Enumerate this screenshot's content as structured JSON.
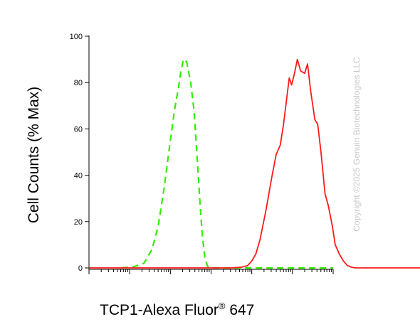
{
  "chart_data": {
    "type": "line",
    "xlabel": "TCP1-Alexa Fluor",
    "xlabel_superscript": "®",
    "xlabel_suffix": " 647",
    "ylabel": "Cell Counts (% Max)",
    "x_scale": "log",
    "xlim": [
      -3,
      3
    ],
    "ylim": [
      0,
      100
    ],
    "y_ticks": [
      0,
      20,
      40,
      60,
      80,
      100
    ],
    "grid": false,
    "watermark": "Copyright ©2025 Genuin Biotechnologies LLC",
    "series": [
      {
        "color": "#33ee00",
        "style": "dashed",
        "points": [
          [
            -2.2,
            0.0
          ],
          [
            -1.9,
            0.5
          ],
          [
            -1.65,
            2.0
          ],
          [
            -1.45,
            8.0
          ],
          [
            -1.3,
            18.0
          ],
          [
            -1.15,
            35.0
          ],
          [
            -1.0,
            55.0
          ],
          [
            -0.9,
            68.0
          ],
          [
            -0.8,
            78.0
          ],
          [
            -0.75,
            84.0
          ],
          [
            -0.68,
            90.0
          ],
          [
            -0.6,
            89.0
          ],
          [
            -0.5,
            80.0
          ],
          [
            -0.42,
            68.0
          ],
          [
            -0.35,
            50.0
          ],
          [
            -0.28,
            30.0
          ],
          [
            -0.22,
            15.0
          ],
          [
            -0.15,
            4.0
          ],
          [
            -0.08,
            0.5
          ],
          [
            0.0,
            0.0
          ],
          [
            3.0,
            0.0
          ]
        ]
      },
      {
        "color": "#ff1a1a",
        "style": "solid",
        "points": [
          [
            -3.0,
            0.0
          ],
          [
            0.5,
            0.0
          ],
          [
            0.75,
            0.3
          ],
          [
            0.9,
            1.0
          ],
          [
            1.0,
            3.0
          ],
          [
            1.1,
            6.0
          ],
          [
            1.2,
            12.0
          ],
          [
            1.35,
            25.0
          ],
          [
            1.5,
            40.0
          ],
          [
            1.6,
            49.0
          ],
          [
            1.7,
            53.0
          ],
          [
            1.78,
            62.0
          ],
          [
            1.85,
            72.0
          ],
          [
            1.92,
            82.0
          ],
          [
            1.98,
            79.0
          ],
          [
            2.05,
            84.0
          ],
          [
            2.12,
            90.0
          ],
          [
            2.2,
            85.0
          ],
          [
            2.3,
            84.0
          ],
          [
            2.37,
            88.0
          ],
          [
            2.45,
            76.0
          ],
          [
            2.55,
            64.0
          ],
          [
            2.62,
            62.0
          ],
          [
            2.7,
            50.0
          ],
          [
            2.8,
            32.0
          ],
          [
            2.88,
            27.0
          ],
          [
            2.98,
            18.0
          ],
          [
            3.05,
            10.0
          ],
          [
            3.15,
            6.0
          ],
          [
            3.25,
            3.0
          ],
          [
            3.35,
            1.0
          ],
          [
            3.45,
            0.3
          ],
          [
            3.55,
            0.0
          ],
          [
            5.2,
            0.0
          ]
        ]
      }
    ]
  }
}
